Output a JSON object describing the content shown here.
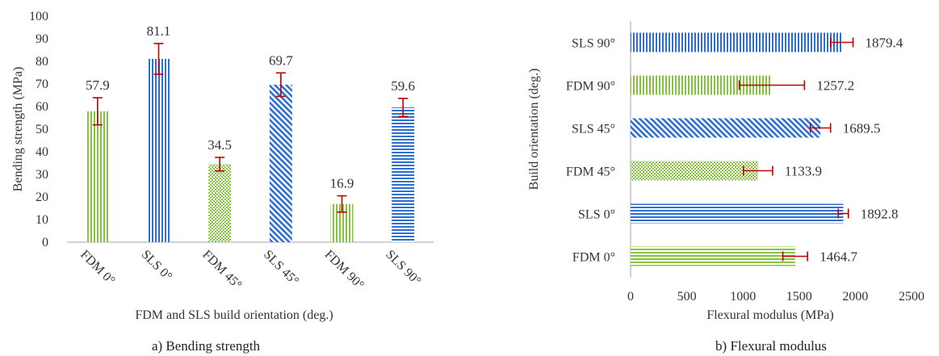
{
  "colors": {
    "blue": "#2e6fd0",
    "green": "#86c440",
    "error": "#c00000",
    "axis": "#a6a6a6",
    "text": "#333333"
  },
  "chart_data": [
    {
      "type": "bar",
      "orientation": "vertical",
      "caption": "a) Bending strength",
      "xlabel": "FDM and SLS build orientation (deg.)",
      "ylabel": "Bending strength (MPa)",
      "ylim": [
        0,
        100
      ],
      "yticks": [
        "0",
        "10",
        "20",
        "30",
        "40",
        "50",
        "60",
        "70",
        "80",
        "90",
        "100"
      ],
      "grid": false,
      "categories": [
        "FDM 0°",
        "SLS 0°",
        "FDM 45°",
        "SLS 45°",
        "FDM 90°",
        "SLS 90°"
      ],
      "values": [
        57.9,
        81.1,
        34.5,
        69.7,
        16.9,
        59.6
      ],
      "value_labels": [
        "57.9",
        "81.1",
        "34.5",
        "69.7",
        "16.9",
        "59.6"
      ],
      "error": [
        6.0,
        6.8,
        3.0,
        5.2,
        3.6,
        4.0
      ],
      "materials": [
        "FDM",
        "SLS",
        "FDM",
        "SLS",
        "FDM",
        "SLS"
      ],
      "patterns": [
        "vertical",
        "vertical",
        "crosshatch",
        "diagonal",
        "vertical",
        "horizontal"
      ]
    },
    {
      "type": "bar",
      "orientation": "horizontal",
      "caption": "b) Flexural modulus",
      "xlabel": "Flexural modulus (MPa)",
      "ylabel": "Build orientation (deg.)",
      "xlim": [
        0,
        2500
      ],
      "xticks": [
        "0",
        "500",
        "1000",
        "1500",
        "2000",
        "2500"
      ],
      "grid": false,
      "categories": [
        "FDM 0°",
        "SLS 0°",
        "FDM 45°",
        "SLS 45°",
        "FDM 90°",
        "SLS 90°"
      ],
      "values": [
        1464.7,
        1892.8,
        1133.9,
        1689.5,
        1257.2,
        1879.4
      ],
      "value_labels": [
        "1464.7",
        "1892.8",
        "1133.9",
        "1689.5",
        "1257.2",
        "1879.4"
      ],
      "error": [
        110,
        45,
        130,
        90,
        290,
        100
      ],
      "materials": [
        "FDM",
        "SLS",
        "FDM",
        "SLS",
        "FDM",
        "SLS"
      ],
      "patterns": [
        "horizontal",
        "horizontal",
        "crosshatch",
        "diagonal",
        "vertical",
        "vertical"
      ]
    }
  ]
}
